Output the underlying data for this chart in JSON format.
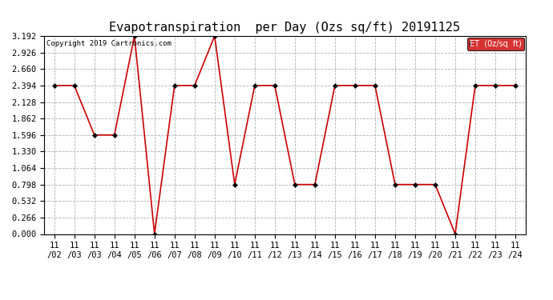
{
  "title": "Evapotranspiration  per Day (Ozs sq/ft) 20191125",
  "copyright": "Copyright 2019 Cartronics.com",
  "legend_label": "ET  (0z/sq  ft)",
  "x_labels": [
    "11/02",
    "11/03",
    "11/03",
    "11/04",
    "11/05",
    "11/06",
    "11/07",
    "11/08",
    "11/09",
    "11/10",
    "11/11",
    "11/12",
    "11/13",
    "11/14",
    "11/15",
    "11/16",
    "11/17",
    "11/18",
    "11/19",
    "11/20",
    "11/21",
    "11/22",
    "11/23",
    "11/24"
  ],
  "values": [
    2.394,
    2.394,
    1.596,
    1.596,
    3.192,
    0.0,
    2.394,
    2.394,
    3.192,
    0.798,
    2.394,
    2.394,
    0.798,
    0.798,
    2.394,
    2.394,
    2.394,
    0.798,
    0.798,
    0.798,
    0.0,
    2.394,
    2.394,
    2.394
  ],
  "line_color": "#cc0000",
  "marker": "D",
  "marker_size": 3,
  "marker_color": "#000000",
  "ylim": [
    0,
    3.192
  ],
  "yticks": [
    0.0,
    0.266,
    0.532,
    0.798,
    1.064,
    1.33,
    1.596,
    1.862,
    2.128,
    2.394,
    2.66,
    2.926,
    3.192
  ],
  "background_color": "#ffffff",
  "grid_color": "#b0b0b0",
  "title_fontsize": 11,
  "tick_fontsize": 7.5,
  "copyright_fontsize": 6.5,
  "legend_bg": "#cc0000",
  "legend_text_color": "#ffffff",
  "legend_fontsize": 7
}
